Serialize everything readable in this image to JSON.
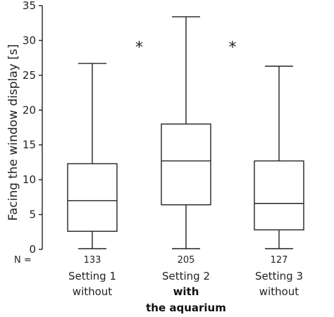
{
  "chart_data": {
    "type": "boxplot",
    "ylabel": "Facing the window display [s]",
    "ylim": [
      0,
      35
    ],
    "yticks": [
      0,
      5,
      10,
      15,
      20,
      25,
      30,
      35
    ],
    "n_prefix": "N =",
    "groups": [
      {
        "n": "133",
        "line1": "Setting 1",
        "line2": "without",
        "line3": "",
        "bold": false,
        "min": 0.1,
        "q1": 2.6,
        "median": 7.0,
        "q3": 12.3,
        "max": 26.7
      },
      {
        "n": "205",
        "line1": "Setting 2",
        "line2": "with",
        "line3": "the aquarium",
        "bold": true,
        "min": 0.1,
        "q1": 6.4,
        "median": 12.7,
        "q3": 18.0,
        "max": 33.4
      },
      {
        "n": "127",
        "line1": "Setting 3",
        "line2": "without",
        "line3": "",
        "bold": false,
        "min": 0.1,
        "q1": 2.8,
        "median": 6.6,
        "q3": 12.7,
        "max": 26.3
      }
    ],
    "significance": [
      {
        "label": "*",
        "y": 29.5,
        "between": [
          0,
          1
        ]
      },
      {
        "label": "*",
        "y": 29.5,
        "between": [
          1,
          2
        ]
      }
    ],
    "grid": false
  }
}
